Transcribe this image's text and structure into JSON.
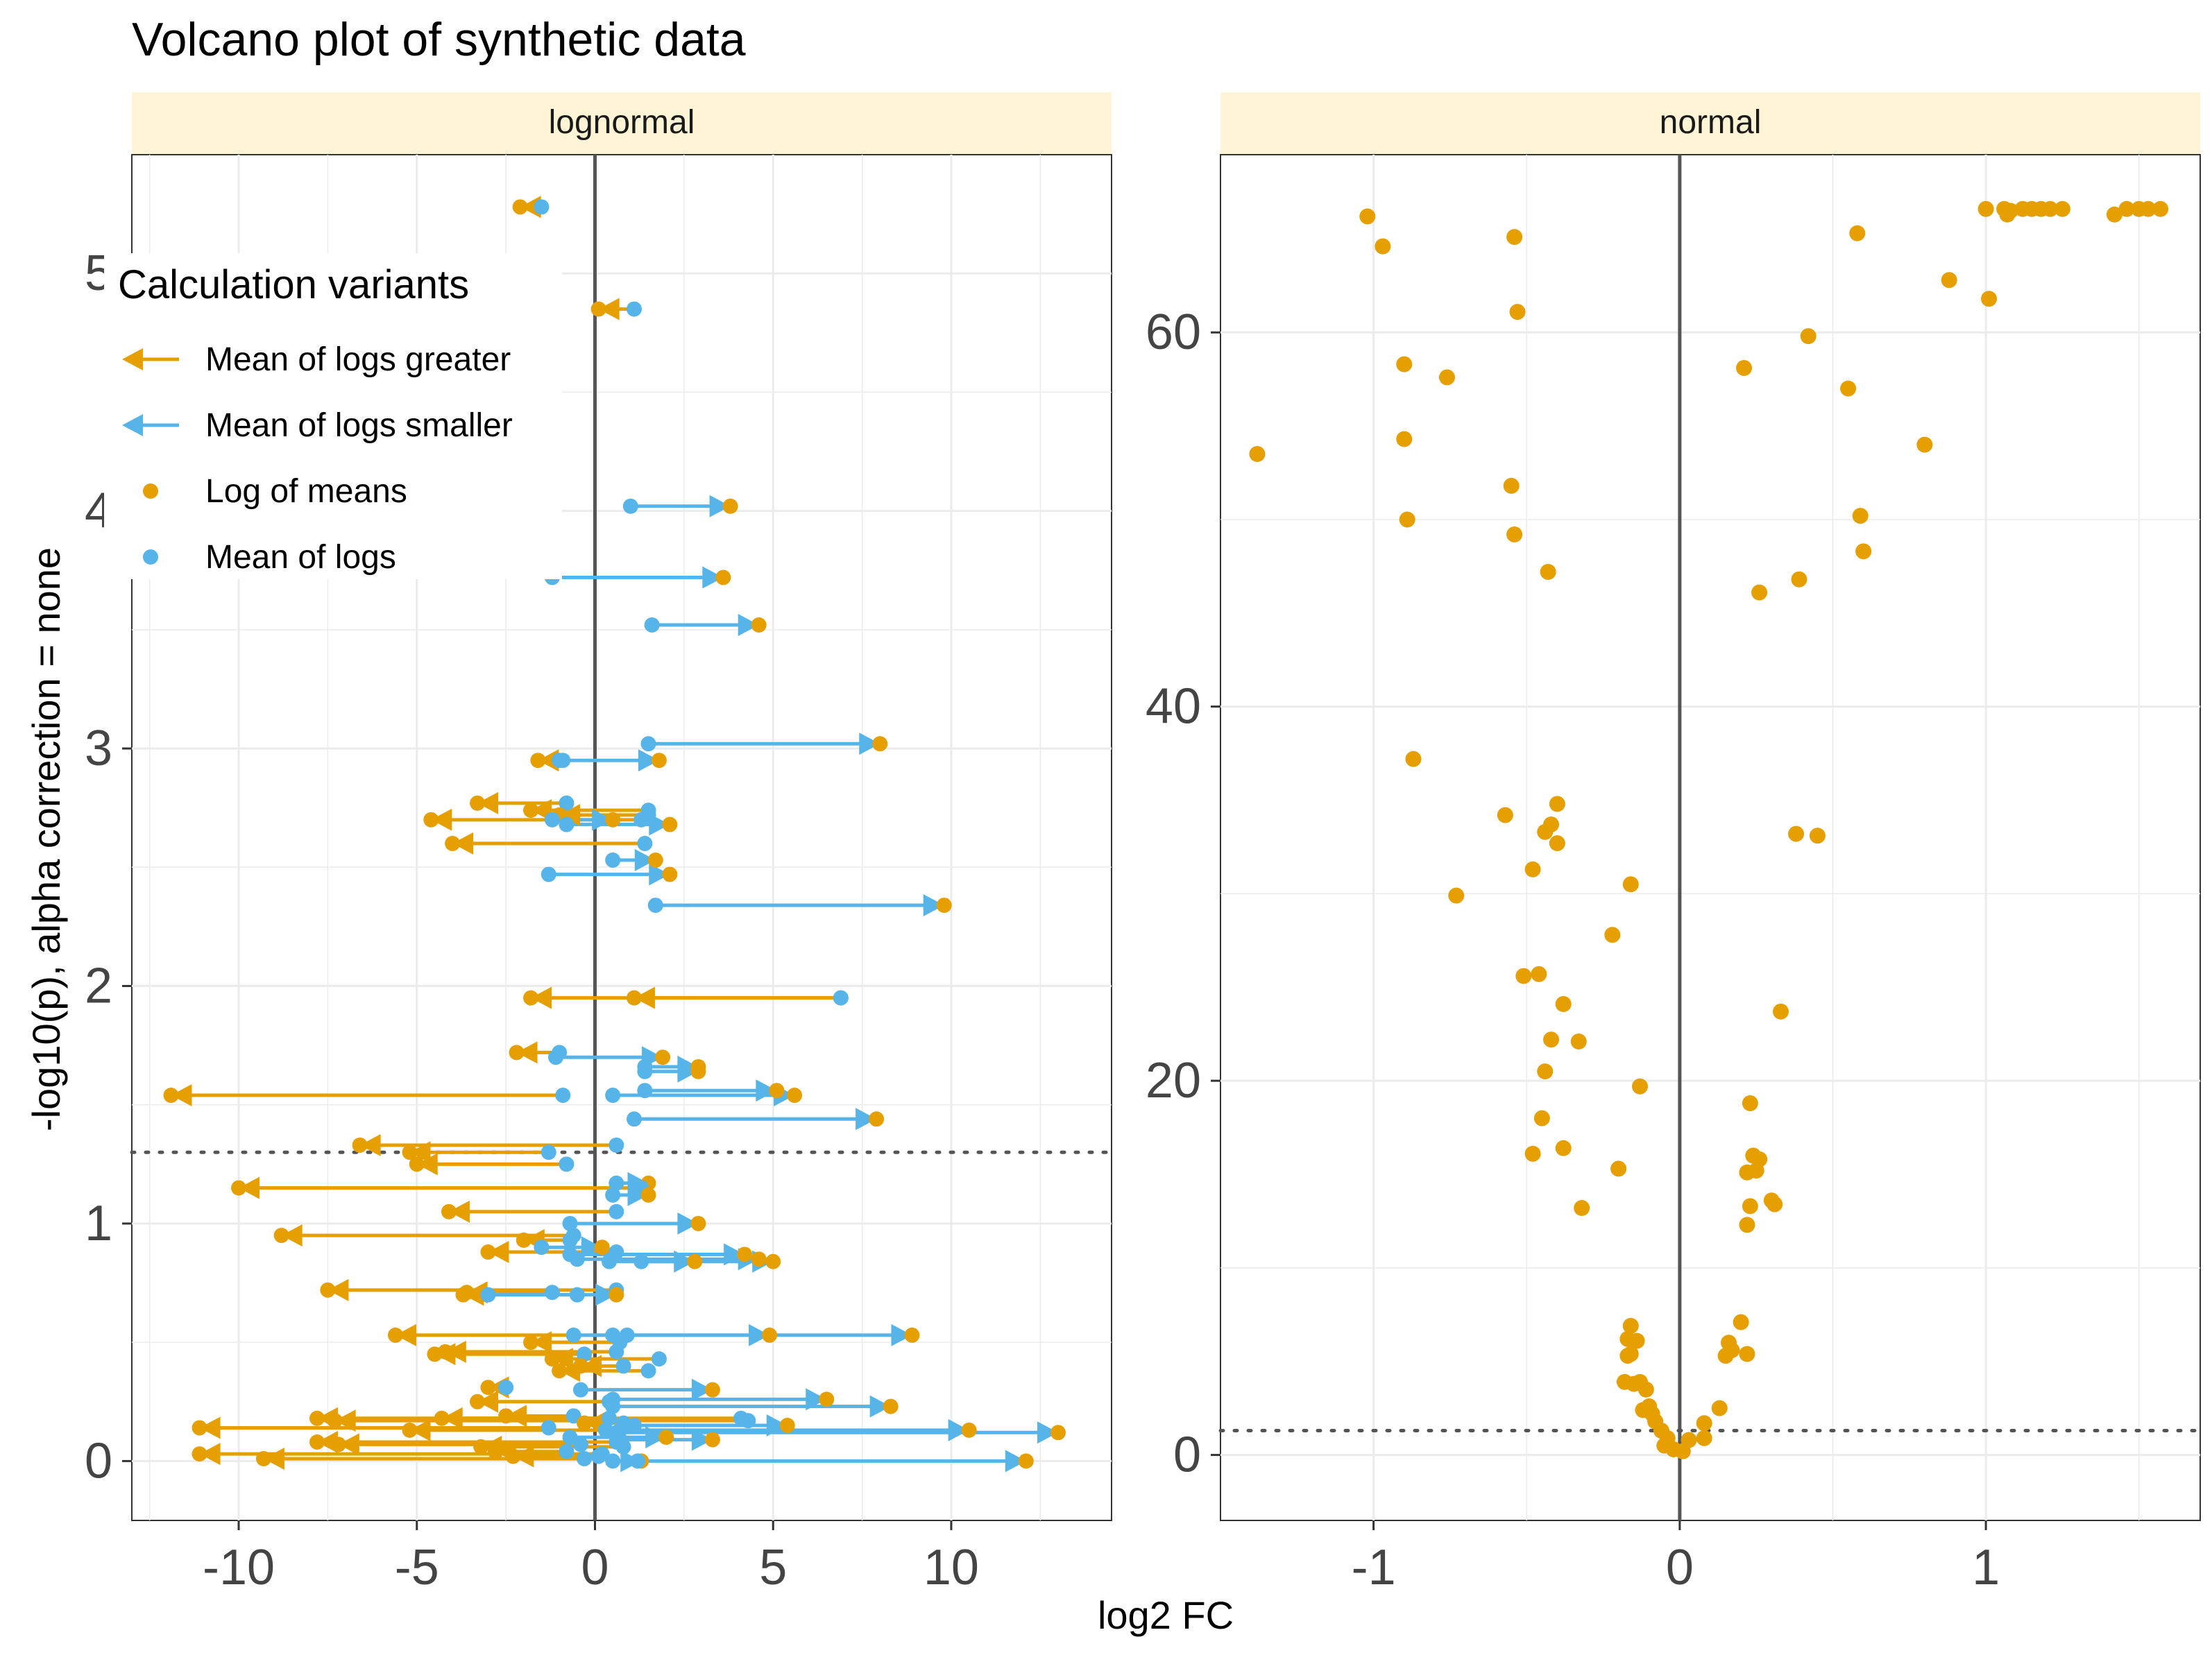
{
  "chart_data": {
    "type": "scatter",
    "title": "Volcano plot of synthetic data",
    "xlabel": "log2 FC",
    "ylabel": "-log10(p), alpha correction = none",
    "significance_threshold": 1.3,
    "colors": {
      "log_of_means": "#E69F00",
      "mean_of_logs": "#56B4E9",
      "strip": "#FFF5D6",
      "grid": "#EBEBEB",
      "zero_line": "#555555"
    },
    "legend": {
      "title": "Calculation variants",
      "position": "top-left",
      "entries": [
        {
          "label": "Mean of logs greater",
          "kind": "arrow",
          "color": "#E69F00"
        },
        {
          "label": "Mean of logs smaller",
          "kind": "arrow",
          "color": "#56B4E9"
        },
        {
          "label": "Log of means",
          "kind": "point",
          "color": "#E69F00"
        },
        {
          "label": "Mean of logs",
          "kind": "point",
          "color": "#56B4E9"
        }
      ]
    },
    "panels": [
      {
        "name": "lognormal",
        "xlim": [
          -13,
          14.5
        ],
        "ylim": [
          -0.25,
          5.5
        ],
        "xticks": [
          -10,
          -5,
          0,
          5,
          10
        ],
        "xtick_labels": [
          "-10",
          "-5",
          "0",
          "5",
          "10"
        ],
        "yticks": [
          0,
          1,
          2,
          3,
          4,
          5
        ],
        "ytick_labels": [
          "0",
          "1",
          "2",
          "3",
          "4",
          "5"
        ],
        "pairs": [
          {
            "p": 5.28,
            "log_of_means": -2.1,
            "mean_of_logs": -1.5
          },
          {
            "p": 4.85,
            "log_of_means": 0.1,
            "mean_of_logs": 1.1
          },
          {
            "p": 4.02,
            "log_of_means": 3.8,
            "mean_of_logs": 1.0
          },
          {
            "p": 3.72,
            "log_of_means": 3.6,
            "mean_of_logs": -1.2
          },
          {
            "p": 3.52,
            "log_of_means": 4.6,
            "mean_of_logs": 1.6
          },
          {
            "p": 3.02,
            "log_of_means": 8.0,
            "mean_of_logs": 1.5
          },
          {
            "p": 2.95,
            "log_of_means": -1.6,
            "mean_of_logs": -0.9
          },
          {
            "p": 2.95,
            "log_of_means": 1.8,
            "mean_of_logs": -1.0
          },
          {
            "p": 2.77,
            "log_of_means": -3.3,
            "mean_of_logs": -0.8
          },
          {
            "p": 2.74,
            "log_of_means": -1.8,
            "mean_of_logs": 1.5
          },
          {
            "p": 2.72,
            "log_of_means": -1.0,
            "mean_of_logs": 1.5
          },
          {
            "p": 2.7,
            "log_of_means": -4.6,
            "mean_of_logs": 1.3
          },
          {
            "p": 2.7,
            "log_of_means": 0.5,
            "mean_of_logs": -1.2
          },
          {
            "p": 2.68,
            "log_of_means": 2.1,
            "mean_of_logs": -0.8
          },
          {
            "p": 2.6,
            "log_of_means": -4.0,
            "mean_of_logs": 1.4
          },
          {
            "p": 2.53,
            "log_of_means": 1.7,
            "mean_of_logs": 0.5
          },
          {
            "p": 2.47,
            "log_of_means": 2.1,
            "mean_of_logs": -1.3
          },
          {
            "p": 2.34,
            "log_of_means": 9.8,
            "mean_of_logs": 1.7
          },
          {
            "p": 1.95,
            "log_of_means": -1.8,
            "mean_of_logs": 6.9
          },
          {
            "p": 1.95,
            "log_of_means": 1.1,
            "mean_of_logs": 6.9
          },
          {
            "p": 1.72,
            "log_of_means": -2.2,
            "mean_of_logs": -1.0
          },
          {
            "p": 1.7,
            "log_of_means": 1.9,
            "mean_of_logs": -1.1
          },
          {
            "p": 1.66,
            "log_of_means": 2.9,
            "mean_of_logs": 1.4
          },
          {
            "p": 1.64,
            "log_of_means": 2.9,
            "mean_of_logs": 1.4
          },
          {
            "p": 1.54,
            "log_of_means": -11.9,
            "mean_of_logs": -0.9
          },
          {
            "p": 1.56,
            "log_of_means": 5.1,
            "mean_of_logs": 1.4
          },
          {
            "p": 1.54,
            "log_of_means": 5.6,
            "mean_of_logs": 0.5
          },
          {
            "p": 1.44,
            "log_of_means": 7.9,
            "mean_of_logs": 1.1
          },
          {
            "p": 1.33,
            "log_of_means": -6.6,
            "mean_of_logs": 0.6
          },
          {
            "p": 1.3,
            "log_of_means": -5.2,
            "mean_of_logs": -1.3
          },
          {
            "p": 1.25,
            "log_of_means": -5.0,
            "mean_of_logs": -0.8
          },
          {
            "p": 1.17,
            "log_of_means": 1.5,
            "mean_of_logs": 0.6
          },
          {
            "p": 1.15,
            "log_of_means": -10.0,
            "mean_of_logs": 1.3
          },
          {
            "p": 1.12,
            "log_of_means": 1.5,
            "mean_of_logs": 0.5
          },
          {
            "p": 1.05,
            "log_of_means": -4.1,
            "mean_of_logs": 0.6
          },
          {
            "p": 1.0,
            "log_of_means": 2.9,
            "mean_of_logs": -0.7
          },
          {
            "p": 0.95,
            "log_of_means": -8.8,
            "mean_of_logs": -0.6
          },
          {
            "p": 0.93,
            "log_of_means": -2.0,
            "mean_of_logs": -0.7
          },
          {
            "p": 0.9,
            "log_of_means": 0.2,
            "mean_of_logs": -1.5
          },
          {
            "p": 0.88,
            "log_of_means": -3.0,
            "mean_of_logs": 0.6
          },
          {
            "p": 0.87,
            "log_of_means": 4.2,
            "mean_of_logs": -0.7
          },
          {
            "p": 0.85,
            "log_of_means": 4.6,
            "mean_of_logs": -0.5
          },
          {
            "p": 0.84,
            "log_of_means": 5.0,
            "mean_of_logs": 1.3
          },
          {
            "p": 0.84,
            "log_of_means": 2.8,
            "mean_of_logs": 0.4
          },
          {
            "p": 0.72,
            "log_of_means": -7.5,
            "mean_of_logs": 0.6
          },
          {
            "p": 0.71,
            "log_of_means": -3.6,
            "mean_of_logs": -1.2
          },
          {
            "p": 0.7,
            "log_of_means": -3.7,
            "mean_of_logs": -0.5
          },
          {
            "p": 0.7,
            "log_of_means": 0.6,
            "mean_of_logs": -3.0
          },
          {
            "p": 0.53,
            "log_of_means": -5.6,
            "mean_of_logs": 0.9
          },
          {
            "p": 0.53,
            "log_of_means": 4.9,
            "mean_of_logs": -0.6
          },
          {
            "p": 0.53,
            "log_of_means": 8.9,
            "mean_of_logs": 0.5
          },
          {
            "p": 0.5,
            "log_of_means": -1.8,
            "mean_of_logs": 0.7
          },
          {
            "p": 0.46,
            "log_of_means": -4.2,
            "mean_of_logs": 0.6
          },
          {
            "p": 0.45,
            "log_of_means": -4.5,
            "mean_of_logs": -0.3
          },
          {
            "p": 0.43,
            "log_of_means": -1.2,
            "mean_of_logs": 1.8
          },
          {
            "p": 0.4,
            "log_of_means": -0.4,
            "mean_of_logs": 0.8
          },
          {
            "p": 0.38,
            "log_of_means": -1.0,
            "mean_of_logs": 1.5
          },
          {
            "p": 0.31,
            "log_of_means": -3.0,
            "mean_of_logs": -2.5
          },
          {
            "p": 0.3,
            "log_of_means": 3.3,
            "mean_of_logs": -0.4
          },
          {
            "p": 0.26,
            "log_of_means": 6.5,
            "mean_of_logs": 0.5
          },
          {
            "p": 0.25,
            "log_of_means": -3.3,
            "mean_of_logs": 0.4
          },
          {
            "p": 0.23,
            "log_of_means": 8.3,
            "mean_of_logs": 0.5
          },
          {
            "p": 0.19,
            "log_of_means": -2.5,
            "mean_of_logs": -0.6
          },
          {
            "p": 0.18,
            "log_of_means": -7.8,
            "mean_of_logs": 0.4
          },
          {
            "p": 0.18,
            "log_of_means": -4.3,
            "mean_of_logs": 4.1
          },
          {
            "p": 0.16,
            "log_of_means": -0.3,
            "mean_of_logs": 0.8
          },
          {
            "p": 0.17,
            "log_of_means": -7.3,
            "mean_of_logs": 4.3
          },
          {
            "p": 0.15,
            "log_of_means": 5.4,
            "mean_of_logs": 1.1
          },
          {
            "p": 0.14,
            "log_of_means": -11.1,
            "mean_of_logs": -1.3
          },
          {
            "p": 0.13,
            "log_of_means": -5.2,
            "mean_of_logs": 0.7
          },
          {
            "p": 0.13,
            "log_of_means": 10.5,
            "mean_of_logs": 0.3
          },
          {
            "p": 0.12,
            "log_of_means": 13.0,
            "mean_of_logs": 0.6
          },
          {
            "p": 0.1,
            "log_of_means": 2.0,
            "mean_of_logs": -0.7
          },
          {
            "p": 0.09,
            "log_of_means": 3.3,
            "mean_of_logs": 0.7
          },
          {
            "p": 0.08,
            "log_of_means": -7.8,
            "mean_of_logs": 0.6
          },
          {
            "p": 0.07,
            "log_of_means": -7.2,
            "mean_of_logs": -0.4
          },
          {
            "p": 0.06,
            "log_of_means": -3.2,
            "mean_of_logs": 0.8
          },
          {
            "p": 0.04,
            "log_of_means": -2.8,
            "mean_of_logs": -0.8
          },
          {
            "p": 0.03,
            "log_of_means": -11.1,
            "mean_of_logs": 0.2
          },
          {
            "p": 0.02,
            "log_of_means": -2.3,
            "mean_of_logs": 0.1
          },
          {
            "p": 0.01,
            "log_of_means": -9.3,
            "mean_of_logs": -0.3
          },
          {
            "p": 0.0,
            "log_of_means": 1.3,
            "mean_of_logs": 0.5
          },
          {
            "p": 0.0,
            "log_of_means": 12.1,
            "mean_of_logs": 1.2
          }
        ]
      },
      {
        "name": "normal",
        "xlim": [
          -1.5,
          1.7
        ],
        "ylim": [
          -3.5,
          69.5
        ],
        "xticks": [
          -1,
          0,
          1
        ],
        "xtick_labels": [
          "-1",
          "0",
          "1"
        ],
        "yticks": [
          0,
          20,
          40,
          60
        ],
        "ytick_labels": [
          "0",
          "20",
          "40",
          "60"
        ],
        "points": [
          [
            -1.38,
            53.5
          ],
          [
            -1.02,
            66.2
          ],
          [
            -0.97,
            64.6
          ],
          [
            -0.9,
            58.3
          ],
          [
            -0.9,
            54.3
          ],
          [
            -0.89,
            50.0
          ],
          [
            -0.87,
            37.2
          ],
          [
            -0.76,
            57.6
          ],
          [
            -0.73,
            29.9
          ],
          [
            -0.57,
            34.2
          ],
          [
            -0.55,
            51.8
          ],
          [
            -0.54,
            65.1
          ],
          [
            -0.54,
            49.2
          ],
          [
            -0.53,
            61.1
          ],
          [
            -0.51,
            25.6
          ],
          [
            -0.48,
            31.3
          ],
          [
            -0.46,
            25.7
          ],
          [
            -0.45,
            18.0
          ],
          [
            -0.44,
            33.3
          ],
          [
            -0.44,
            20.5
          ],
          [
            -0.43,
            47.2
          ],
          [
            -0.42,
            33.7
          ],
          [
            -0.42,
            22.2
          ],
          [
            -0.4,
            34.8
          ],
          [
            -0.4,
            32.7
          ],
          [
            -0.38,
            24.1
          ],
          [
            -0.38,
            16.4
          ],
          [
            -0.48,
            16.1
          ],
          [
            -0.33,
            22.1
          ],
          [
            -0.32,
            13.2
          ],
          [
            -0.22,
            27.8
          ],
          [
            -0.2,
            15.3
          ],
          [
            -0.16,
            30.5
          ],
          [
            -0.13,
            19.7
          ],
          [
            -0.16,
            6.9
          ],
          [
            -0.17,
            6.2
          ],
          [
            -0.14,
            6.1
          ],
          [
            -0.17,
            5.3
          ],
          [
            -0.16,
            5.4
          ],
          [
            -0.18,
            3.9
          ],
          [
            -0.15,
            3.8
          ],
          [
            -0.13,
            3.9
          ],
          [
            -0.11,
            3.5
          ],
          [
            -0.12,
            2.4
          ],
          [
            -0.1,
            2.6
          ],
          [
            -0.09,
            2.2
          ],
          [
            -0.08,
            1.8
          ],
          [
            -0.06,
            1.3
          ],
          [
            -0.04,
            0.9
          ],
          [
            -0.05,
            0.5
          ],
          [
            -0.02,
            0.3
          ],
          [
            0.01,
            0.2
          ],
          [
            0.03,
            0.8
          ],
          [
            0.08,
            0.9
          ],
          [
            0.08,
            1.7
          ],
          [
            0.13,
            2.5
          ],
          [
            0.15,
            5.3
          ],
          [
            0.16,
            6.0
          ],
          [
            0.17,
            5.6
          ],
          [
            0.2,
            7.1
          ],
          [
            0.22,
            5.4
          ],
          [
            0.22,
            12.3
          ],
          [
            0.23,
            13.3
          ],
          [
            0.22,
            15.1
          ],
          [
            0.23,
            18.8
          ],
          [
            0.24,
            16.0
          ],
          [
            0.25,
            15.2
          ],
          [
            0.26,
            15.8
          ],
          [
            0.26,
            46.1
          ],
          [
            0.3,
            13.6
          ],
          [
            0.31,
            13.4
          ],
          [
            0.33,
            23.7
          ],
          [
            0.38,
            33.2
          ],
          [
            0.39,
            46.8
          ],
          [
            0.42,
            59.8
          ],
          [
            0.45,
            33.1
          ],
          [
            0.55,
            57.0
          ],
          [
            0.58,
            65.3
          ],
          [
            0.59,
            50.2
          ],
          [
            0.6,
            48.3
          ],
          [
            0.21,
            58.1
          ],
          [
            0.8,
            54.0
          ],
          [
            0.88,
            62.8
          ],
          [
            1.0,
            66.6
          ],
          [
            1.01,
            61.8
          ],
          [
            1.06,
            66.6
          ],
          [
            1.07,
            66.3
          ],
          [
            1.08,
            66.5
          ],
          [
            1.12,
            66.6
          ],
          [
            1.15,
            66.6
          ],
          [
            1.18,
            66.6
          ],
          [
            1.21,
            66.6
          ],
          [
            1.25,
            66.6
          ],
          [
            1.42,
            66.3
          ],
          [
            1.46,
            66.6
          ],
          [
            1.5,
            66.6
          ],
          [
            1.53,
            66.6
          ],
          [
            1.57,
            66.6
          ]
        ]
      }
    ]
  }
}
